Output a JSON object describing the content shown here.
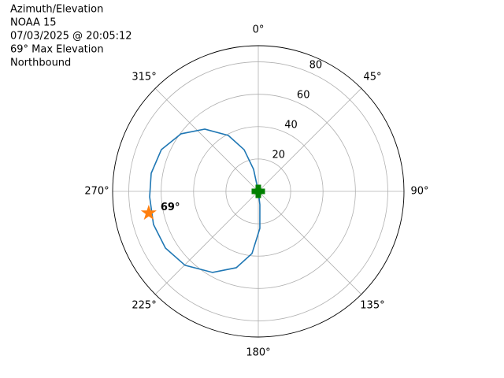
{
  "chart_data": {
    "type": "polar",
    "title_lines": [
      "Azimuth/Elevation",
      "NOAA 15",
      "07/03/2025 @ 20:05:12",
      "69° Max Elevation",
      "Northbound"
    ],
    "theta_zero": "N",
    "theta_direction": "clockwise",
    "rlim": [
      0,
      90
    ],
    "rticks": [
      20,
      40,
      60,
      80
    ],
    "thetaticks": [
      {
        "value": 0,
        "label": "0°"
      },
      {
        "value": 45,
        "label": "45°"
      },
      {
        "value": 90,
        "label": "90°"
      },
      {
        "value": 135,
        "label": "135°"
      },
      {
        "value": 180,
        "label": "180°"
      },
      {
        "value": 225,
        "label": "225°"
      },
      {
        "value": 270,
        "label": "270°"
      },
      {
        "value": 315,
        "label": "315°"
      }
    ],
    "grid": true,
    "series": [
      {
        "color": "#1f77b4",
        "azimuth": [
          350,
          347.9,
          341.2,
          331.8,
          319.3,
          306.7,
          293.3,
          279.6,
          267.1,
          252.5,
          238.6,
          224.7,
          209.4,
          196.1,
          185.8,
          177.6,
          173.3,
          170
        ],
        "elevation": [
          0,
          13.9,
          27.2,
          39.2,
          50.7,
          59.5,
          65.2,
          67.1,
          67.2,
          67.9,
          67.2,
          64.3,
          57.5,
          49.1,
          38.6,
          22.9,
          8.3,
          0
        ]
      }
    ],
    "max_point": {
      "azimuth": 258.8,
      "elevation": 69,
      "value_label": "69°",
      "color": "#ff7f0e",
      "marker": "star"
    },
    "origin_point": {
      "azimuth": 0,
      "elevation": 0,
      "color": "#008000",
      "marker": "plus"
    }
  }
}
